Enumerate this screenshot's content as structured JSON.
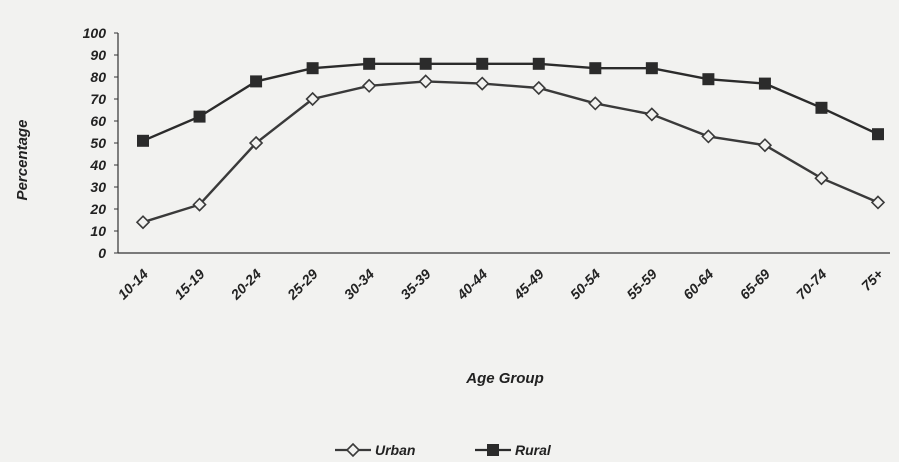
{
  "chart_data": {
    "type": "line",
    "x_label": "Age Group",
    "y_label": "Percentage",
    "categories": [
      "10-14",
      "15-19",
      "20-24",
      "25-29",
      "30-34",
      "35-39",
      "40-44",
      "45-49",
      "50-54",
      "55-59",
      "60-64",
      "65-69",
      "70-74",
      "75+"
    ],
    "series": [
      {
        "name": "Urban",
        "color": "#3a3a3a",
        "marker": "diamond",
        "values": [
          14,
          22,
          50,
          70,
          76,
          78,
          77,
          75,
          68,
          63,
          53,
          49,
          34,
          23
        ]
      },
      {
        "name": "Rural",
        "color": "#2b2b2b",
        "marker": "square",
        "values": [
          51,
          62,
          78,
          84,
          86,
          86,
          86,
          86,
          84,
          84,
          79,
          77,
          66,
          54
        ]
      }
    ],
    "ylim": [
      0,
      100
    ],
    "yticks": [
      0,
      10,
      20,
      30,
      40,
      50,
      60,
      70,
      80,
      90,
      100
    ],
    "grid": false,
    "legend": "bottom"
  }
}
